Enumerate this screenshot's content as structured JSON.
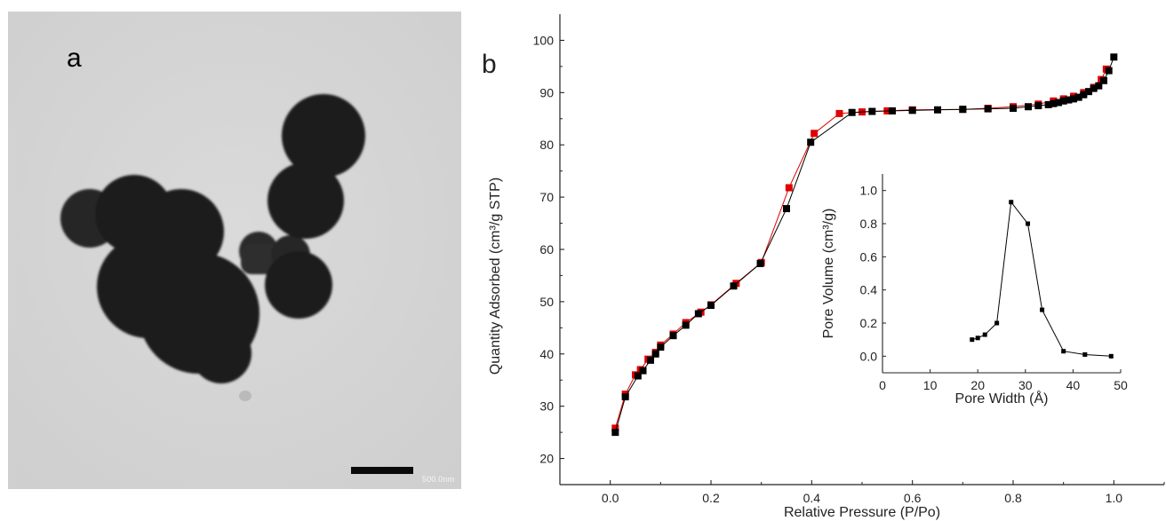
{
  "panel_a": {
    "label": "a",
    "scale_bar_text": "500.0nm"
  },
  "panel_b": {
    "label": "b"
  },
  "chart_data": [
    {
      "type": "scatter",
      "title": "",
      "xlabel": "Relative Pressure (P/Po)",
      "ylabel": "Quantity Adsorbed (cm³/g STP)",
      "xlim": [
        -0.1,
        1.1
      ],
      "ylim": [
        15,
        105
      ],
      "xticks": [
        "0.0",
        "0.2",
        "0.4",
        "0.6",
        "0.8",
        "1.0"
      ],
      "yticks": [
        "20",
        "30",
        "40",
        "50",
        "60",
        "70",
        "80",
        "90",
        "100"
      ],
      "grid": false,
      "legend": "none",
      "series": [
        {
          "color": "#e00000",
          "marker": "square",
          "line": true,
          "x": [
            0.01,
            0.03,
            0.05,
            0.06,
            0.075,
            0.09,
            0.1,
            0.125,
            0.15,
            0.18,
            0.2,
            0.25,
            0.3,
            0.355,
            0.405,
            0.455,
            0.5,
            0.55,
            0.6,
            0.7,
            0.75,
            0.8,
            0.85,
            0.88,
            0.9,
            0.92,
            0.94,
            0.96,
            0.975,
            0.985
          ],
          "y": [
            25.8,
            32.3,
            36,
            37,
            39,
            40.3,
            41.7,
            43.8,
            46,
            48,
            49.4,
            53.5,
            57.5,
            71.8,
            82.2,
            86,
            86.3,
            86.5,
            86.7,
            86.8,
            87,
            87.3,
            87.8,
            88.4,
            88.8,
            89.3,
            90,
            91,
            92.5,
            94.5
          ]
        },
        {
          "color": "#000000",
          "marker": "square",
          "line": true,
          "x": [
            0.01,
            0.03,
            0.055,
            0.065,
            0.08,
            0.09,
            0.1,
            0.125,
            0.15,
            0.175,
            0.2,
            0.245,
            0.298,
            0.35,
            0.398,
            0.48,
            0.52,
            0.56,
            0.6,
            0.65,
            0.7,
            0.75,
            0.8,
            0.83,
            0.85,
            0.87,
            0.88,
            0.89,
            0.9,
            0.91,
            0.92,
            0.93,
            0.94,
            0.95,
            0.96,
            0.97,
            0.98,
            0.99,
            1.0
          ],
          "y": [
            25,
            31.8,
            35.8,
            36.8,
            38.8,
            40,
            41.3,
            43.5,
            45.5,
            47.7,
            49.3,
            53,
            57.3,
            67.8,
            80.5,
            86.2,
            86.4,
            86.5,
            86.6,
            86.7,
            86.8,
            86.9,
            87,
            87.3,
            87.5,
            87.7,
            87.9,
            88.1,
            88.4,
            88.6,
            88.8,
            89.1,
            89.6,
            90.2,
            90.8,
            91.3,
            92.3,
            94.2,
            96.8
          ]
        }
      ]
    },
    {
      "type": "line",
      "title": "",
      "xlabel": "Pore Width (Å)",
      "ylabel": "Pore Volume (cm³/g)",
      "xlim": [
        0,
        50
      ],
      "ylim": [
        -0.1,
        1.1
      ],
      "xticks": [
        "0",
        "10",
        "20",
        "30",
        "40",
        "50"
      ],
      "yticks": [
        "0.0",
        "0.2",
        "0.4",
        "0.6",
        "0.8",
        "1.0"
      ],
      "grid": false,
      "legend": "none",
      "series": [
        {
          "color": "#000000",
          "marker": "square",
          "x": [
            18.8,
            20,
            21.5,
            24,
            27,
            30.5,
            33.5,
            38,
            42.5,
            48
          ],
          "y": [
            0.1,
            0.11,
            0.13,
            0.2,
            0.93,
            0.8,
            0.28,
            0.03,
            0.01,
            0.0
          ]
        }
      ]
    }
  ]
}
